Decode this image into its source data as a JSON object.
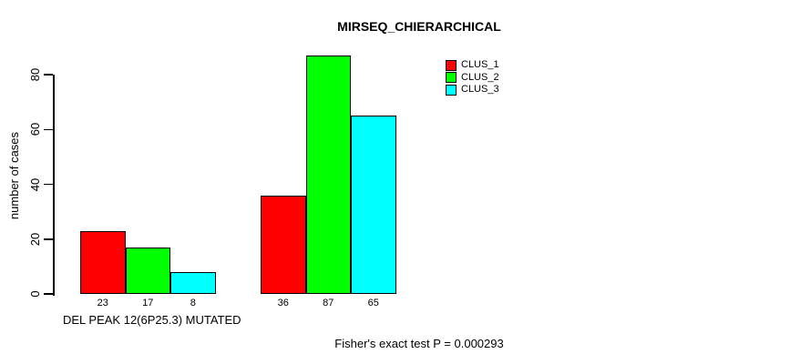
{
  "title": "MIRSEQ_CHIERARCHICAL",
  "y_axis_label": "number of cases",
  "x_axis_label": "DEL PEAK 12(6P25.3) MUTATED",
  "footer": "Fisher's exact test P = 0.000293",
  "legend": [
    {
      "label": "CLUS_1",
      "color": "#ff0000"
    },
    {
      "label": "CLUS_2",
      "color": "#00ff00"
    },
    {
      "label": "CLUS_3",
      "color": "#00ffff"
    }
  ],
  "chart_data": {
    "type": "bar",
    "title": "MIRSEQ_CHIERARCHICAL",
    "ylabel": "number of cases",
    "xlabel": "DEL PEAK 12(6P25.3) MUTATED",
    "annotation": "Fisher's exact test P = 0.000293",
    "categories": [
      "DEL PEAK 12(6P25.3) MUTATED",
      ""
    ],
    "series": [
      {
        "name": "CLUS_1",
        "color": "#ff0000",
        "values": [
          23,
          36
        ]
      },
      {
        "name": "CLUS_2",
        "color": "#00ff00",
        "values": [
          17,
          87
        ]
      },
      {
        "name": "CLUS_3",
        "color": "#00ffff",
        "values": [
          8,
          65
        ]
      }
    ],
    "bar_value_labels": [
      [
        "23",
        "17",
        "8"
      ],
      [
        "36",
        "87",
        "65"
      ]
    ],
    "yticks": [
      0,
      20,
      40,
      60,
      80
    ],
    "ylim": [
      0,
      88
    ],
    "grid": false,
    "legend_position": "top-right",
    "axis_color": "#000000",
    "background": "#ffffff"
  }
}
